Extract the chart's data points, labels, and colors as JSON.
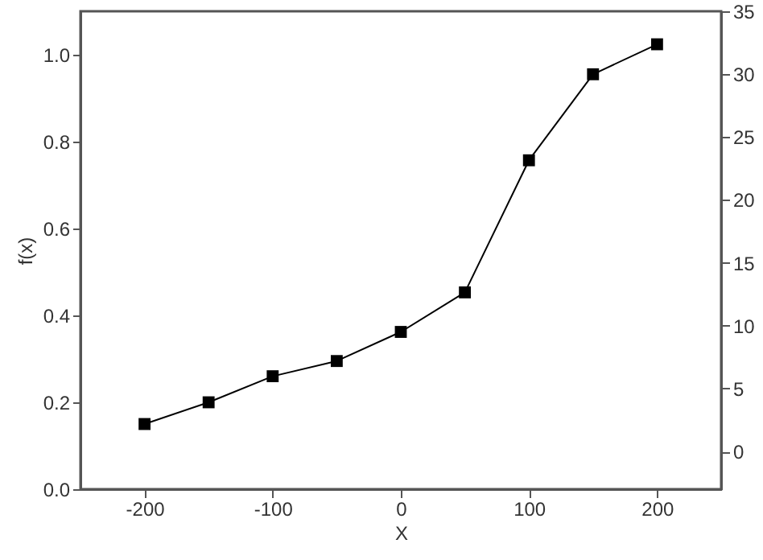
{
  "chart_data": {
    "type": "line",
    "xlabel": "X",
    "ylabel": "f(x)",
    "x": [
      -200,
      -150,
      -100,
      -50,
      0,
      50,
      100,
      150,
      200
    ],
    "series": [
      {
        "color": "#000000",
        "values": [
          0.15,
          0.2,
          0.26,
          0.295,
          0.362,
          0.453,
          0.757,
          0.955,
          1.024
        ]
      }
    ],
    "xlim": [
      -250,
      250
    ],
    "xticks": [
      -200,
      -100,
      0,
      100,
      200
    ],
    "ylim": [
      0,
      1.1
    ],
    "yticks": [
      {
        "value": 0,
        "label": "0.0"
      },
      0.2,
      0.4,
      0.6,
      0.8,
      {
        "value": 1,
        "label": "1.0"
      }
    ],
    "y2lim": [
      -3,
      35
    ],
    "y2ticks": [
      0,
      5,
      10,
      15,
      20,
      25,
      30,
      35
    ],
    "marker": "square",
    "line_style": "solid",
    "grid": false
  }
}
